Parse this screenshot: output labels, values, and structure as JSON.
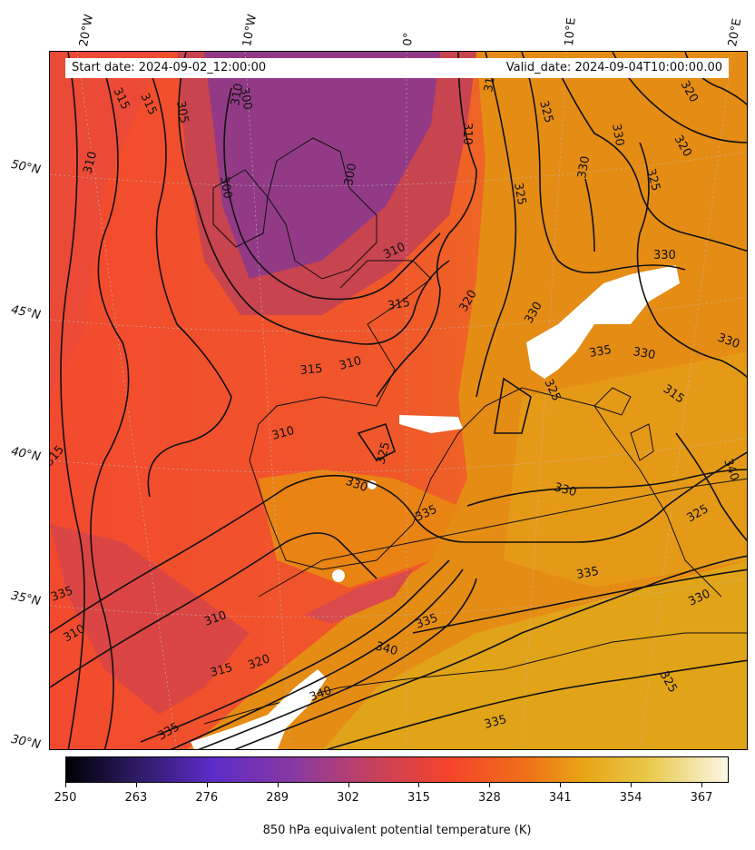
{
  "info": {
    "start_date": "Start date: 2024-09-02_12:00:00",
    "valid_date": "Valid_date: 2024-09-04T10:00:00.00"
  },
  "lon_labels": [
    "20°W",
    "10°W",
    "0°",
    "10°E",
    "20°E"
  ],
  "lat_labels": [
    "50°N",
    "45°N",
    "40°N",
    "35°N",
    "30°N"
  ],
  "contour_labels": [
    "315",
    "315",
    "305",
    "300",
    "310",
    "300",
    "310",
    "300",
    "310",
    "31",
    "325",
    "320",
    "330",
    "320",
    "330",
    "325",
    "325",
    "330",
    "310",
    "315",
    "320",
    "315",
    "310",
    "330",
    "335",
    "330",
    "330",
    "325",
    "310",
    "315",
    "325",
    "330",
    "330",
    "335",
    "325",
    "340",
    "335",
    "330",
    "335",
    "315",
    "310",
    "310",
    "335",
    "320",
    "315",
    "340",
    "340",
    "335",
    "335",
    "325"
  ],
  "colorbar": {
    "ticks": [
      "250",
      "263",
      "276",
      "289",
      "302",
      "315",
      "328",
      "341",
      "354",
      "367"
    ],
    "label": "850 hPa equivalent potential temperature (K)",
    "range": [
      250,
      372
    ],
    "colormap": "CMRmap-like (black-purple-red-orange-yellow-white)"
  },
  "colors": {
    "cold_purple": "#8a3a96",
    "red_orange": "#f4442a",
    "orange": "#ef7318",
    "gold": "#e3a616",
    "missing": "#ffffff"
  }
}
